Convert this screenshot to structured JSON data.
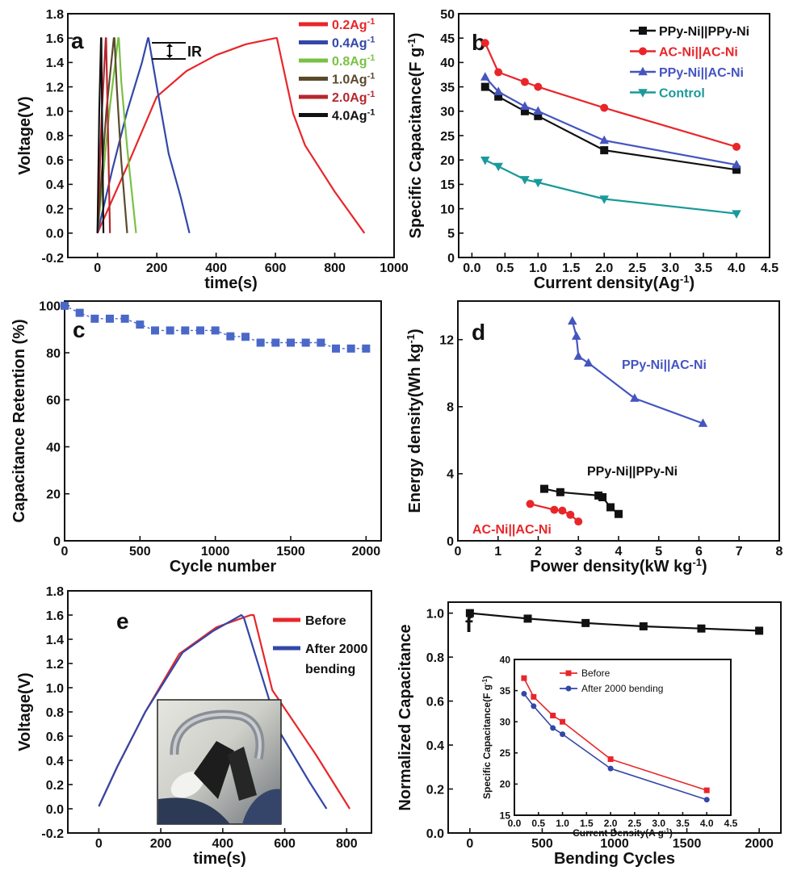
{
  "chart_data": [
    {
      "panel_letter": "a",
      "type": "line",
      "xlabel": "time(s)",
      "ylabel": "Voltage(V)",
      "xlim": [
        -100,
        1000
      ],
      "ylim": [
        -0.2,
        1.8
      ],
      "xticks": [
        0,
        200,
        400,
        600,
        800,
        1000
      ],
      "yticks": [
        -0.2,
        0.0,
        0.2,
        0.4,
        0.6,
        0.8,
        1.0,
        1.2,
        1.4,
        1.6,
        1.8
      ],
      "annotation": "IR",
      "legend_position": "top-right",
      "series": [
        {
          "name": "0.2Ag",
          "sup": "-1",
          "color": "#e8262a",
          "x": [
            0,
            100,
            200,
            300,
            400,
            500,
            600,
            605,
            660,
            700,
            800,
            900
          ],
          "y": [
            0,
            0.55,
            1.12,
            1.33,
            1.46,
            1.55,
            1.6,
            1.6,
            0.98,
            0.72,
            0.34,
            0
          ]
        },
        {
          "name": "0.4Ag",
          "sup": "-1",
          "color": "#3347a8",
          "x": [
            0,
            50,
            100,
            150,
            170,
            172,
            200,
            240,
            280,
            310
          ],
          "y": [
            0,
            0.52,
            1.0,
            1.4,
            1.6,
            1.6,
            1.2,
            0.65,
            0.3,
            0
          ]
        },
        {
          "name": "0.8Ag",
          "sup": "-1",
          "color": "#7ac143",
          "x": [
            0,
            40,
            70,
            72,
            80,
            100,
            130
          ],
          "y": [
            0,
            1.0,
            1.6,
            1.6,
            1.25,
            0.7,
            0
          ]
        },
        {
          "name": "1.0Ag",
          "sup": "-1",
          "color": "#5a4a2a",
          "x": [
            0,
            30,
            55,
            57,
            65,
            80,
            100
          ],
          "y": [
            0,
            1.0,
            1.6,
            1.6,
            1.2,
            0.6,
            0
          ]
        },
        {
          "name": "2.0Ag",
          "sup": "-1",
          "color": "#b5272d",
          "x": [
            0,
            15,
            28,
            29,
            33,
            42
          ],
          "y": [
            0,
            1.0,
            1.6,
            1.6,
            1.15,
            0
          ]
        },
        {
          "name": "4.0Ag",
          "sup": "-1",
          "color": "#111111",
          "x": [
            0,
            6,
            12,
            13,
            15,
            20
          ],
          "y": [
            0,
            1.0,
            1.6,
            1.6,
            1.1,
            0
          ]
        }
      ]
    },
    {
      "panel_letter": "b",
      "type": "line",
      "xlabel": "Current density(Ag",
      "xlabel_sup": "-1",
      "xlabel_end": ")",
      "ylabel": "Specific Capacitance(F g",
      "ylabel_sup": "-1",
      "ylabel_end": ")",
      "xlim": [
        -0.2,
        4.5
      ],
      "ylim": [
        0,
        50
      ],
      "xticks": [
        0.0,
        0.5,
        1.0,
        1.5,
        2.0,
        2.5,
        3.0,
        3.5,
        4.0,
        4.5
      ],
      "yticks": [
        0,
        5,
        10,
        15,
        20,
        25,
        30,
        35,
        40,
        45,
        50
      ],
      "legend_position": "top-right",
      "series": [
        {
          "name": "PPy-Ni||PPy-Ni",
          "color": "#111111",
          "marker": "square",
          "x": [
            0.2,
            0.4,
            0.8,
            1.0,
            2.0,
            4.0
          ],
          "y": [
            35,
            33,
            30,
            29,
            22,
            18
          ]
        },
        {
          "name": "AC-Ni||AC-Ni",
          "color": "#e8262a",
          "marker": "circle",
          "x": [
            0.2,
            0.4,
            0.8,
            1.0,
            2.0,
            4.0
          ],
          "y": [
            44,
            38,
            36,
            35,
            30.7,
            22.7
          ]
        },
        {
          "name": "PPy-Ni||AC-Ni",
          "color": "#4455c0",
          "marker": "triangle-up",
          "x": [
            0.2,
            0.4,
            0.8,
            1.0,
            2.0,
            4.0
          ],
          "y": [
            37,
            34,
            31,
            30,
            24,
            19
          ]
        },
        {
          "name": "Control",
          "color": "#1a9a9a",
          "marker": "triangle-down",
          "x": [
            0.2,
            0.4,
            0.8,
            1.0,
            2.0,
            4.0
          ],
          "y": [
            20,
            18.7,
            16,
            15.4,
            12,
            9
          ]
        }
      ]
    },
    {
      "panel_letter": "c",
      "type": "scatter",
      "xlabel": "Cycle number",
      "ylabel": "Capacitance Retention (%)",
      "xlim": [
        0,
        2100
      ],
      "ylim": [
        0,
        102
      ],
      "xticks": [
        0,
        500,
        1000,
        1500,
        2000
      ],
      "yticks": [
        0,
        20,
        40,
        60,
        80,
        100
      ],
      "series": [
        {
          "name": "",
          "color": "#4a68c8",
          "marker": "square",
          "x": [
            0,
            100,
            200,
            300,
            400,
            500,
            600,
            700,
            800,
            900,
            1000,
            1100,
            1200,
            1300,
            1400,
            1500,
            1600,
            1700,
            1800,
            1900,
            2000
          ],
          "y": [
            100,
            97,
            94.5,
            94.5,
            94.5,
            92,
            89.5,
            89.5,
            89.5,
            89.5,
            89.5,
            87,
            86.8,
            84.3,
            84.3,
            84.3,
            84.3,
            84.3,
            81.8,
            81.8,
            81.8
          ]
        }
      ]
    },
    {
      "panel_letter": "d",
      "type": "line",
      "xlabel": "Power density(kW kg",
      "xlabel_sup": "-1",
      "xlabel_end": ")",
      "ylabel": "Energy density(Wh kg",
      "ylabel_sup": "-1",
      "ylabel_end": ")",
      "xlim": [
        0,
        8
      ],
      "ylim": [
        0,
        14.3
      ],
      "xticks": [
        0,
        1,
        2,
        3,
        4,
        5,
        6,
        7,
        8
      ],
      "yticks": [
        0,
        4,
        8,
        12
      ],
      "series": [
        {
          "name": "PPy-Ni||AC-Ni",
          "color": "#4455c0",
          "marker": "triangle-up",
          "x": [
            2.85,
            2.95,
            3.0,
            3.25,
            4.4,
            6.1
          ],
          "y": [
            13.1,
            12.2,
            11.0,
            10.6,
            8.5,
            7.0
          ]
        },
        {
          "name": "PPy-Ni||PPy-Ni",
          "color": "#111111",
          "marker": "square",
          "x": [
            2.15,
            2.55,
            3.5,
            3.6,
            3.8,
            4.0
          ],
          "y": [
            3.1,
            2.9,
            2.7,
            2.6,
            2.0,
            1.6
          ]
        },
        {
          "name": "AC-Ni||AC-Ni",
          "color": "#e8262a",
          "marker": "circle",
          "x": [
            1.8,
            2.4,
            2.6,
            2.8,
            3.0
          ],
          "y": [
            2.2,
            1.85,
            1.8,
            1.55,
            1.15
          ]
        }
      ]
    },
    {
      "panel_letter": "e",
      "type": "line",
      "xlabel": "time(s)",
      "ylabel": "Voltage(V)",
      "xlim": [
        -100,
        880
      ],
      "ylim": [
        -0.2,
        1.8
      ],
      "xticks": [
        0,
        200,
        400,
        600,
        800
      ],
      "yticks": [
        -0.2,
        0.0,
        0.2,
        0.4,
        0.6,
        0.8,
        1.0,
        1.2,
        1.4,
        1.6,
        1.8
      ],
      "legend_position": "top-right",
      "series": [
        {
          "name": "Before",
          "color": "#e8262a",
          "x": [
            0,
            60,
            150,
            260,
            380,
            490,
            500,
            560,
            700,
            810
          ],
          "y": [
            0.02,
            0.35,
            0.8,
            1.28,
            1.5,
            1.6,
            1.6,
            0.98,
            0.45,
            0
          ]
        },
        {
          "name": "After 2000 bending",
          "name_lines": [
            "After 2000",
            "bending"
          ],
          "color": "#3347a8",
          "x": [
            0,
            60,
            150,
            270,
            370,
            460,
            468,
            580,
            680,
            735
          ],
          "y": [
            0.02,
            0.35,
            0.8,
            1.29,
            1.47,
            1.6,
            1.58,
            0.65,
            0.22,
            0
          ]
        }
      ]
    },
    {
      "panel_letter": "f",
      "type": "line",
      "xlabel": "Bending Cycles",
      "ylabel": "Normalized Capacitance",
      "xlim": [
        -150,
        2150
      ],
      "ylim": [
        0,
        1.05
      ],
      "xticks": [
        0,
        500,
        1000,
        1500,
        2000
      ],
      "yticks": [
        0.0,
        0.2,
        0.4,
        0.6,
        0.8,
        1.0
      ],
      "series": [
        {
          "name": "",
          "color": "#111111",
          "marker": "square",
          "x": [
            0,
            400,
            800,
            1200,
            1600,
            2000
          ],
          "y": [
            1.0,
            0.975,
            0.955,
            0.94,
            0.93,
            0.92
          ]
        }
      ]
    },
    {
      "panel_letter": "",
      "type": "line",
      "inset_of": "f",
      "xlabel": "Current Density(A g",
      "xlabel_sup": "-1",
      "xlabel_end": ")",
      "ylabel": "Specific Capacitance(F g",
      "ylabel_sup": "-1",
      "ylabel_end": ")",
      "xlim": [
        0,
        4.5
      ],
      "ylim": [
        15,
        40
      ],
      "xticks": [
        0.0,
        0.5,
        1.0,
        1.5,
        2.0,
        2.5,
        3.0,
        3.5,
        4.0,
        4.5
      ],
      "yticks": [
        15,
        20,
        25,
        30,
        35,
        40
      ],
      "legend_position": "top-center",
      "series": [
        {
          "name": "Before",
          "color": "#e8262a",
          "marker": "square",
          "x": [
            0.2,
            0.4,
            0.8,
            1.0,
            2.0,
            4.0
          ],
          "y": [
            37,
            34,
            31,
            30,
            24,
            19
          ]
        },
        {
          "name": "After 2000 bending",
          "color": "#3347a8",
          "marker": "circle",
          "x": [
            0.2,
            0.4,
            0.8,
            1.0,
            2.0,
            4.0
          ],
          "y": [
            34.5,
            32.5,
            29,
            28,
            22.5,
            17.5
          ]
        }
      ]
    }
  ],
  "colors": {
    "axis": "#111111"
  },
  "photo": {
    "icon": "bent-device-photo"
  }
}
